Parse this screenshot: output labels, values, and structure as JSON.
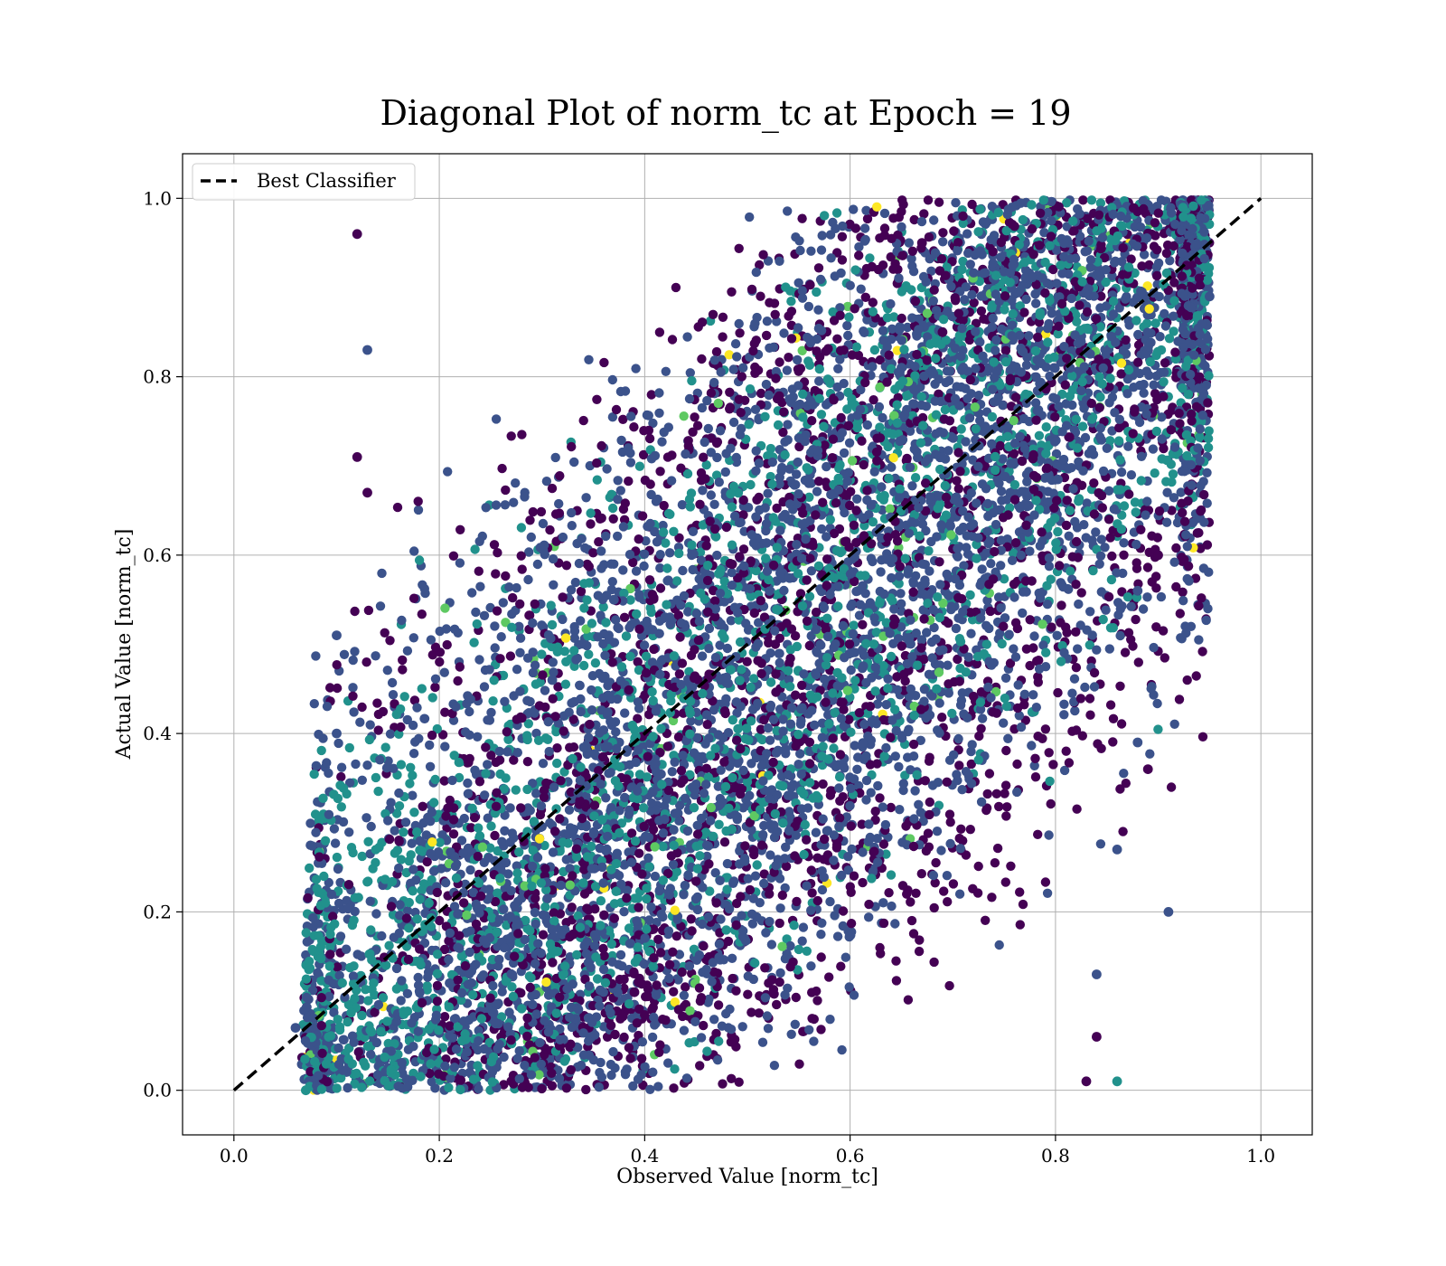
{
  "chart_data": {
    "type": "scatter",
    "title": "Diagonal Plot of norm_tc at Epoch = 19",
    "xlabel": "Observed Value [norm_tc]",
    "ylabel": "Actual Value [norm_tc]",
    "xlim": [
      -0.05,
      1.05
    ],
    "ylim": [
      -0.05,
      1.05
    ],
    "xticks": [
      0.0,
      0.2,
      0.4,
      0.6,
      0.8,
      1.0
    ],
    "yticks": [
      0.0,
      0.2,
      0.4,
      0.6,
      0.8,
      1.0
    ],
    "xtick_labels": [
      "0.0",
      "0.2",
      "0.4",
      "0.6",
      "0.8",
      "1.0"
    ],
    "ytick_labels": [
      "0.0",
      "0.2",
      "0.4",
      "0.6",
      "0.8",
      "1.0"
    ],
    "grid": true,
    "colormap": "viridis",
    "legend": {
      "placement": "upper-left",
      "entries": [
        {
          "label": "Best Classifier",
          "style": "dashed",
          "color": "#000000"
        }
      ]
    },
    "reference_line": {
      "name": "Best Classifier",
      "x": [
        0.0,
        1.0
      ],
      "y": [
        0.0,
        1.0
      ],
      "color": "#000000",
      "style": "dashed"
    },
    "series": [
      {
        "description": "dense point cloud of observed vs actual values",
        "color_range": [
          "#440154",
          "#3b528b",
          "#21918c",
          "#5ec962",
          "#fde725"
        ],
        "points_sampled": [
          {
            "x": 0.12,
            "y": 0.96
          },
          {
            "x": 0.13,
            "y": 0.83
          },
          {
            "x": 0.12,
            "y": 0.71
          },
          {
            "x": 0.13,
            "y": 0.67
          },
          {
            "x": 0.1,
            "y": 0.51
          },
          {
            "x": 0.1,
            "y": 0.4
          },
          {
            "x": 0.06,
            "y": 0.07
          },
          {
            "x": 0.37,
            "y": 0.55
          },
          {
            "x": 0.31,
            "y": 0.46
          },
          {
            "x": 0.39,
            "y": 0.11
          },
          {
            "x": 0.31,
            "y": 0.18
          },
          {
            "x": 0.67,
            "y": 0.95
          },
          {
            "x": 0.65,
            "y": 0.81
          },
          {
            "x": 0.69,
            "y": 0.85
          },
          {
            "x": 0.95,
            "y": 0.89
          },
          {
            "x": 0.9,
            "y": 0.6
          },
          {
            "x": 0.88,
            "y": 0.56
          },
          {
            "x": 0.88,
            "y": 0.39
          },
          {
            "x": 0.89,
            "y": 0.36
          },
          {
            "x": 0.86,
            "y": 0.27
          },
          {
            "x": 0.91,
            "y": 0.2
          },
          {
            "x": 0.84,
            "y": 0.13
          },
          {
            "x": 0.84,
            "y": 0.06
          },
          {
            "x": 0.86,
            "y": 0.01
          },
          {
            "x": 0.83,
            "y": 0.01
          },
          {
            "x": 0.07,
            "y": 0.0
          }
        ]
      }
    ]
  }
}
